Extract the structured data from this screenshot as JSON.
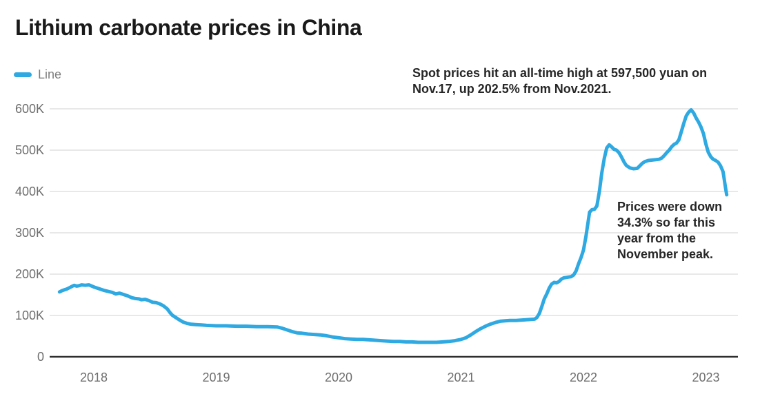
{
  "title": "Lithium carbonate prices in China",
  "legend": {
    "label": "Line",
    "swatch_color": "#2FA9E1"
  },
  "annotations": {
    "record_high": {
      "lines": [
        "Spot prices hit an all-time high at 597,500 yuan on",
        "Nov.17, up 202.5% from Nov.2021."
      ]
    },
    "peak_drop": {
      "lines": [
        "Prices were down",
        "34.3% so far this",
        "year from the",
        "November peak."
      ]
    }
  },
  "chart_data": {
    "type": "line",
    "title": "Lithium carbonate prices in China",
    "series_name": "Line",
    "line_color": "#2FA9E1",
    "grid": "horizontal",
    "legend_position": "top-left",
    "x_unit": "year (decimal)",
    "y_unit": "yuan, thousands",
    "ylim": [
      0,
      600
    ],
    "y_tick_labels": [
      "0",
      "100K",
      "200K",
      "300K",
      "400K",
      "500K",
      "600K"
    ],
    "x_tick_labels": [
      "2018",
      "2019",
      "2020",
      "2021",
      "2022",
      "2023"
    ],
    "record_high_value_yuan": 597500,
    "record_high_date": "Nov.17",
    "decline_from_peak_pct": 34.3,
    "rise_from_nov2021_pct": 202.5,
    "points": [
      [
        2017.72,
        157
      ],
      [
        2017.74,
        160
      ],
      [
        2017.76,
        162
      ],
      [
        2017.78,
        164
      ],
      [
        2017.8,
        167
      ],
      [
        2017.82,
        170
      ],
      [
        2017.84,
        173
      ],
      [
        2017.86,
        171
      ],
      [
        2017.88,
        172
      ],
      [
        2017.9,
        174
      ],
      [
        2017.93,
        173
      ],
      [
        2017.96,
        174
      ],
      [
        2018.0,
        169
      ],
      [
        2018.04,
        165
      ],
      [
        2018.08,
        161
      ],
      [
        2018.12,
        158
      ],
      [
        2018.15,
        156
      ],
      [
        2018.18,
        152
      ],
      [
        2018.21,
        154
      ],
      [
        2018.24,
        151
      ],
      [
        2018.28,
        147
      ],
      [
        2018.31,
        143
      ],
      [
        2018.34,
        141
      ],
      [
        2018.37,
        140
      ],
      [
        2018.39,
        138
      ],
      [
        2018.42,
        139
      ],
      [
        2018.45,
        136
      ],
      [
        2018.48,
        132
      ],
      [
        2018.51,
        131
      ],
      [
        2018.54,
        128
      ],
      [
        2018.57,
        123
      ],
      [
        2018.6,
        116
      ],
      [
        2018.62,
        108
      ],
      [
        2018.64,
        101
      ],
      [
        2018.67,
        95
      ],
      [
        2018.7,
        89
      ],
      [
        2018.73,
        84
      ],
      [
        2018.76,
        81
      ],
      [
        2018.79,
        79
      ],
      [
        2018.83,
        78
      ],
      [
        2018.88,
        77
      ],
      [
        2018.92,
        76
      ],
      [
        2019.0,
        75
      ],
      [
        2019.08,
        75
      ],
      [
        2019.17,
        74
      ],
      [
        2019.25,
        74
      ],
      [
        2019.33,
        73
      ],
      [
        2019.42,
        73
      ],
      [
        2019.5,
        72
      ],
      [
        2019.54,
        69
      ],
      [
        2019.58,
        65
      ],
      [
        2019.62,
        61
      ],
      [
        2019.66,
        58
      ],
      [
        2019.7,
        57
      ],
      [
        2019.75,
        55
      ],
      [
        2019.8,
        54
      ],
      [
        2019.85,
        53
      ],
      [
        2019.9,
        51
      ],
      [
        2019.95,
        48
      ],
      [
        2020.0,
        46
      ],
      [
        2020.05,
        44
      ],
      [
        2020.1,
        43
      ],
      [
        2020.15,
        42
      ],
      [
        2020.2,
        42
      ],
      [
        2020.25,
        41
      ],
      [
        2020.3,
        40
      ],
      [
        2020.35,
        39
      ],
      [
        2020.4,
        38
      ],
      [
        2020.45,
        37
      ],
      [
        2020.5,
        37
      ],
      [
        2020.55,
        36
      ],
      [
        2020.6,
        36
      ],
      [
        2020.65,
        35
      ],
      [
        2020.7,
        35
      ],
      [
        2020.75,
        35
      ],
      [
        2020.8,
        35
      ],
      [
        2020.85,
        36
      ],
      [
        2020.9,
        37
      ],
      [
        2020.95,
        39
      ],
      [
        2021.0,
        42
      ],
      [
        2021.04,
        46
      ],
      [
        2021.08,
        53
      ],
      [
        2021.12,
        61
      ],
      [
        2021.16,
        68
      ],
      [
        2021.2,
        74
      ],
      [
        2021.24,
        79
      ],
      [
        2021.28,
        83
      ],
      [
        2021.32,
        86
      ],
      [
        2021.36,
        87
      ],
      [
        2021.4,
        88
      ],
      [
        2021.45,
        88
      ],
      [
        2021.5,
        89
      ],
      [
        2021.55,
        90
      ],
      [
        2021.6,
        91
      ],
      [
        2021.62,
        95
      ],
      [
        2021.64,
        105
      ],
      [
        2021.66,
        122
      ],
      [
        2021.68,
        140
      ],
      [
        2021.7,
        152
      ],
      [
        2021.72,
        166
      ],
      [
        2021.74,
        176
      ],
      [
        2021.76,
        180
      ],
      [
        2021.78,
        179
      ],
      [
        2021.8,
        182
      ],
      [
        2021.82,
        188
      ],
      [
        2021.84,
        191
      ],
      [
        2021.86,
        192
      ],
      [
        2021.88,
        193
      ],
      [
        2021.9,
        194
      ],
      [
        2021.92,
        198
      ],
      [
        2021.94,
        208
      ],
      [
        2021.96,
        225
      ],
      [
        2021.98,
        240
      ],
      [
        2022.0,
        258
      ],
      [
        2022.02,
        290
      ],
      [
        2022.04,
        330
      ],
      [
        2022.05,
        350
      ],
      [
        2022.07,
        356
      ],
      [
        2022.09,
        357
      ],
      [
        2022.11,
        365
      ],
      [
        2022.13,
        400
      ],
      [
        2022.15,
        445
      ],
      [
        2022.17,
        480
      ],
      [
        2022.19,
        505
      ],
      [
        2022.21,
        513
      ],
      [
        2022.23,
        508
      ],
      [
        2022.25,
        502
      ],
      [
        2022.27,
        500
      ],
      [
        2022.29,
        494
      ],
      [
        2022.31,
        484
      ],
      [
        2022.33,
        472
      ],
      [
        2022.35,
        463
      ],
      [
        2022.38,
        457
      ],
      [
        2022.41,
        455
      ],
      [
        2022.44,
        456
      ],
      [
        2022.46,
        462
      ],
      [
        2022.48,
        468
      ],
      [
        2022.5,
        472
      ],
      [
        2022.53,
        475
      ],
      [
        2022.56,
        476
      ],
      [
        2022.59,
        477
      ],
      [
        2022.62,
        478
      ],
      [
        2022.64,
        481
      ],
      [
        2022.66,
        487
      ],
      [
        2022.68,
        494
      ],
      [
        2022.7,
        500
      ],
      [
        2022.72,
        508
      ],
      [
        2022.74,
        514
      ],
      [
        2022.76,
        517
      ],
      [
        2022.78,
        525
      ],
      [
        2022.8,
        545
      ],
      [
        2022.82,
        565
      ],
      [
        2022.84,
        583
      ],
      [
        2022.86,
        592
      ],
      [
        2022.88,
        597.5
      ],
      [
        2022.9,
        590
      ],
      [
        2022.92,
        578
      ],
      [
        2022.94,
        568
      ],
      [
        2022.96,
        556
      ],
      [
        2022.98,
        540
      ],
      [
        2023.0,
        515
      ],
      [
        2023.02,
        495
      ],
      [
        2023.04,
        484
      ],
      [
        2023.06,
        478
      ],
      [
        2023.08,
        475
      ],
      [
        2023.1,
        471
      ],
      [
        2023.12,
        462
      ],
      [
        2023.14,
        448
      ],
      [
        2023.15,
        430
      ],
      [
        2023.16,
        410
      ],
      [
        2023.17,
        392
      ]
    ]
  }
}
